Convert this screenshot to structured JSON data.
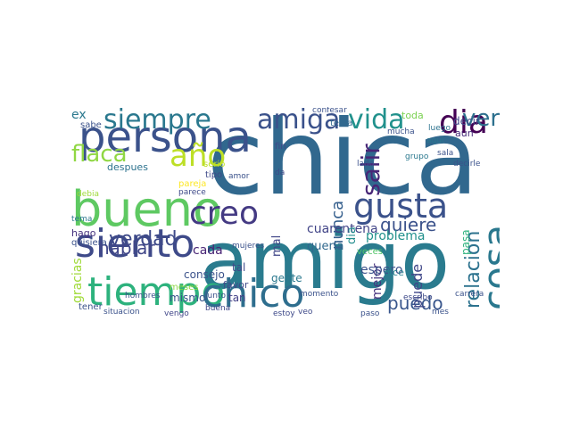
{
  "words": [
    "chica",
    "amigo",
    "bueno",
    "persona",
    "tiempo",
    "chico",
    "siento",
    "cosa",
    "gusta",
    "creo",
    "dia",
    "año",
    "siempre",
    "amiga",
    "flaca",
    "vida",
    "ver",
    "salir",
    "verdad",
    "hablar",
    "relacion",
    "quiere",
    "puedo",
    "nunca",
    "mejor",
    "puede",
    "ex",
    "gracias",
    "queria",
    "problema",
    "espero",
    "cuarentena",
    "mal",
    "cada",
    "mismo",
    "dia",
    "pasa",
    "tal",
    "consejo",
    "decir",
    "aun",
    "toda",
    "tan",
    "dice",
    "gente",
    "veces",
    "favor",
    "despues",
    "hago",
    "quisiera",
    "sabe",
    "tener",
    "serio",
    "pareja",
    "tipo",
    "meses",
    "buena",
    "momento",
    "fin",
    "confesar",
    "tenia",
    "mucha",
    "luego",
    "aqui",
    "sala",
    "mes",
    "tema",
    "veo",
    "vengo",
    "estoy",
    "paso",
    "decirle",
    "grupo",
    "mujeres",
    "da",
    "hombres",
    "escribo",
    "situacion",
    "junto",
    "carrera",
    "debia",
    "lado",
    "parece",
    "amor"
  ]
}
